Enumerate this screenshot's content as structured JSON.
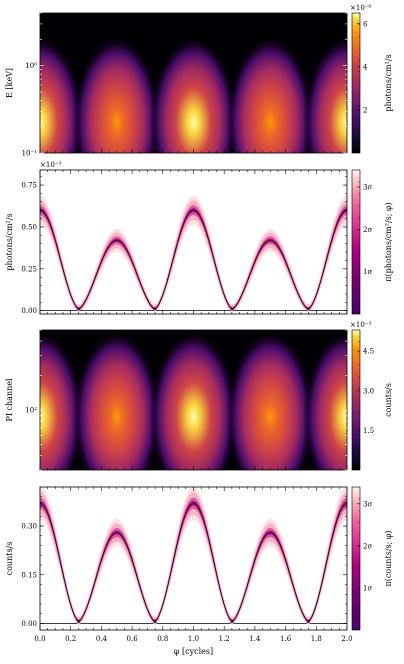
{
  "chart_data": [
    {
      "type": "heatmap",
      "panel": "energy-resolved pulse",
      "ylabel": "E [keV]",
      "yscale": "log",
      "ylim": [
        0.1,
        4.0
      ],
      "yticks": [
        {
          "value": 0.1,
          "label": "10⁻¹"
        },
        {
          "value": 1.0,
          "label": "10⁰"
        }
      ],
      "xlim": [
        0.0,
        2.0
      ],
      "colorbar": {
        "label": "photons/cm²/s",
        "multiplier": "×10⁻⁶",
        "range": [
          0.0,
          6.5e-06
        ],
        "ticks": [
          {
            "value": 2e-06,
            "label": "2"
          },
          {
            "value": 4e-06,
            "label": "4"
          },
          {
            "value": 6e-06,
            "label": "6"
          }
        ],
        "colormap": "inferno"
      },
      "pulse_centers_cycles": [
        0.0,
        0.5,
        1.0,
        1.5,
        2.0
      ],
      "pulse_peaks": [
        6e-06,
        4e-06,
        6.2e-06,
        4e-06,
        6e-06
      ]
    },
    {
      "type": "line",
      "panel": "bolometric pulse profile",
      "ylabel": "photons/cm²/s",
      "multiplier": "×10⁻³",
      "ylim": [
        -0.02,
        0.84
      ],
      "yticks": [
        {
          "value": 0.0,
          "label": "0.00"
        },
        {
          "value": 0.25,
          "label": "0.25"
        },
        {
          "value": 0.5,
          "label": "0.50"
        },
        {
          "value": 0.75,
          "label": "0.75"
        }
      ],
      "xlim": [
        0.0,
        2.0
      ],
      "colorbar": {
        "label": "π(photons/cm²/s; φ)",
        "ticks": [
          {
            "value": 1,
            "label": "1σ"
          },
          {
            "value": 2,
            "label": "2σ"
          },
          {
            "value": 3,
            "label": "3σ"
          }
        ],
        "colormap": "RdPu"
      },
      "components": [
        {
          "role": "primary hot region",
          "peak": 0.6,
          "center_cycles": 0.0,
          "period_cycles": 1.0
        },
        {
          "role": "secondary hot region",
          "peak": 0.42,
          "center_cycles": 0.5,
          "period_cycles": 1.0
        }
      ],
      "x": [
        0.0,
        0.1,
        0.2,
        0.3,
        0.4,
        0.5,
        0.6,
        0.7,
        0.8,
        0.9,
        1.0,
        1.1,
        1.2,
        1.3,
        1.4,
        1.5,
        1.6,
        1.7,
        1.8,
        1.9,
        2.0
      ],
      "total": [
        0.6,
        0.51,
        0.25,
        0.05,
        0.26,
        0.42,
        0.3,
        0.17,
        0.3,
        0.49,
        0.6,
        0.51,
        0.25,
        0.05,
        0.26,
        0.42,
        0.3,
        0.17,
        0.3,
        0.49,
        0.6
      ]
    },
    {
      "type": "heatmap",
      "panel": "channel-resolved counts",
      "ylabel": "PI channel",
      "yscale": "log",
      "ylim": [
        30,
        500
      ],
      "yticks": [
        {
          "value": 100,
          "label": "10²"
        }
      ],
      "xlim": [
        0.0,
        2.0
      ],
      "colorbar": {
        "label": "counts/s",
        "multiplier": "×10⁻³",
        "range": [
          0.0,
          0.0053
        ],
        "ticks": [
          {
            "value": 0.0015,
            "label": "1.5"
          },
          {
            "value": 0.003,
            "label": "3.0"
          },
          {
            "value": 0.0045,
            "label": "4.5"
          }
        ],
        "colormap": "inferno"
      },
      "pulse_centers_cycles": [
        0.0,
        0.5,
        1.0,
        1.5,
        2.0
      ],
      "pulse_peaks": [
        0.0048,
        0.0034,
        0.005,
        0.0034,
        0.0048
      ]
    },
    {
      "type": "line",
      "panel": "count-rate pulse profile",
      "ylabel": "counts/s",
      "ylim": [
        -0.02,
        0.42
      ],
      "yticks": [
        {
          "value": 0.0,
          "label": "0.00"
        },
        {
          "value": 0.15,
          "label": "0.15"
        },
        {
          "value": 0.3,
          "label": "0.30"
        }
      ],
      "xlim": [
        0.0,
        2.0
      ],
      "xlabel": "φ [cycles]",
      "xticks": [
        {
          "value": 0.0,
          "label": "0.0"
        },
        {
          "value": 0.2,
          "label": "0.2"
        },
        {
          "value": 0.4,
          "label": "0.4"
        },
        {
          "value": 0.6,
          "label": "0.6"
        },
        {
          "value": 0.8,
          "label": "0.8"
        },
        {
          "value": 1.0,
          "label": "1.0"
        },
        {
          "value": 1.2,
          "label": "1.2"
        },
        {
          "value": 1.4,
          "label": "1.4"
        },
        {
          "value": 1.6,
          "label": "1.6"
        },
        {
          "value": 1.8,
          "label": "1.8"
        },
        {
          "value": 2.0,
          "label": "2.0"
        }
      ],
      "colorbar": {
        "label": "π(counts/s; φ)",
        "ticks": [
          {
            "value": 1,
            "label": "1σ"
          },
          {
            "value": 2,
            "label": "2σ"
          },
          {
            "value": 3,
            "label": "3σ"
          }
        ],
        "colormap": "RdPu"
      },
      "components": [
        {
          "role": "primary hot region",
          "peak": 0.37,
          "center_cycles": 0.0,
          "period_cycles": 1.0
        },
        {
          "role": "secondary hot region",
          "peak": 0.28,
          "center_cycles": 0.5,
          "period_cycles": 1.0
        }
      ],
      "x": [
        0.0,
        0.1,
        0.2,
        0.3,
        0.4,
        0.5,
        0.6,
        0.7,
        0.8,
        0.9,
        1.0,
        1.1,
        1.2,
        1.3,
        1.4,
        1.5,
        1.6,
        1.7,
        1.8,
        1.9,
        2.0
      ],
      "total": [
        0.37,
        0.33,
        0.17,
        0.03,
        0.16,
        0.28,
        0.21,
        0.09,
        0.2,
        0.33,
        0.38,
        0.33,
        0.17,
        0.03,
        0.16,
        0.28,
        0.21,
        0.09,
        0.2,
        0.33,
        0.37
      ]
    }
  ]
}
